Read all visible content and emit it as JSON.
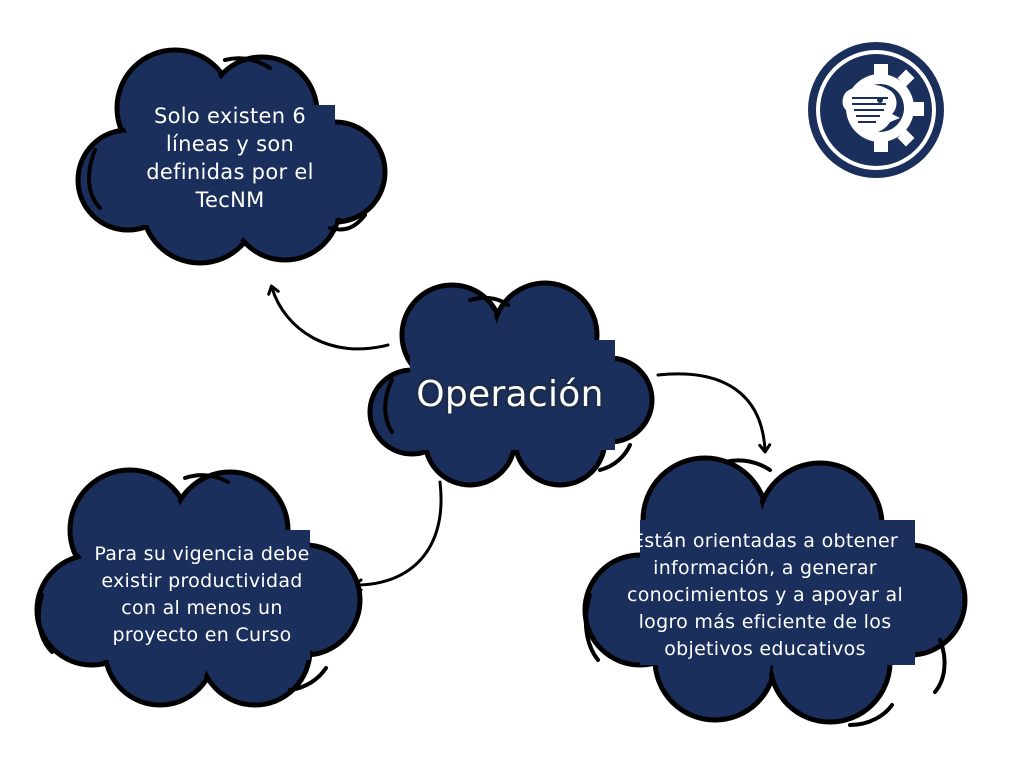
{
  "center_node": {
    "label": "Operación"
  },
  "nodes": {
    "top_left": {
      "text": "Solo existen 6 líneas y son definidas por el TecNM"
    },
    "bottom_left": {
      "text": "Para su vigencia debe existir productividad con al menos un proyecto en Curso"
    },
    "bottom_right": {
      "text": "Están orientadas a obtener información, a generar conocimientos y a apoyar al logro más eficiente de los objetivos educativos"
    }
  },
  "logo": {
    "icon": "tecnm-logo"
  },
  "colors": {
    "cloud_fill": "#1b2f5c",
    "outline": "#000000",
    "background": "#ffffff",
    "text": "#ffffff"
  }
}
